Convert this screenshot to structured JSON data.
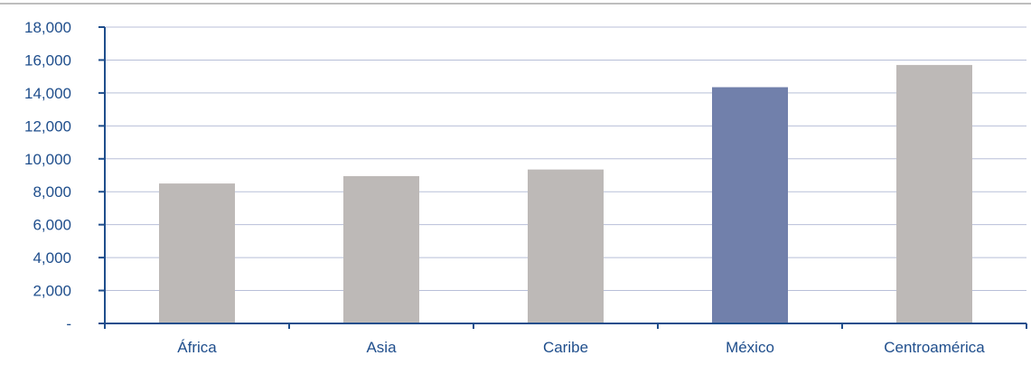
{
  "chart_data": {
    "type": "bar",
    "categories": [
      "África",
      "Asia",
      "Caribe",
      "México",
      "Centroamérica"
    ],
    "values": [
      8500,
      8950,
      9350,
      14350,
      15700
    ],
    "ylim": [
      0,
      18000
    ],
    "y_ticks": [
      0,
      2000,
      4000,
      6000,
      8000,
      10000,
      12000,
      14000,
      16000,
      18000
    ],
    "y_tick_labels": [
      "-",
      "2,000",
      "4,000",
      "6,000",
      "8,000",
      "10,000",
      "12,000",
      "14,000",
      "16,000",
      "18,000"
    ],
    "highlight_category": "México",
    "grid": "horizontal",
    "legend": "none",
    "title": "",
    "xlabel": "",
    "ylabel": ""
  },
  "colors": {
    "bar_default": "#bdb9b7",
    "bar_highlight": "#7180ab",
    "axis": "#1f4e8c",
    "label_text": "#1f4e8c",
    "gridline": "#b8bfd8",
    "top_rule": "#a9a9a9"
  }
}
